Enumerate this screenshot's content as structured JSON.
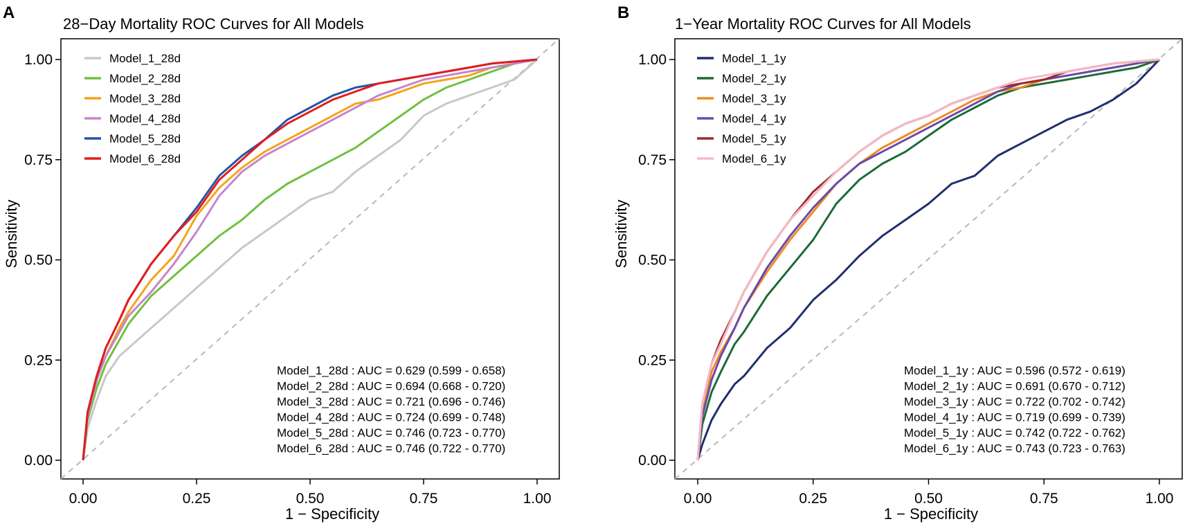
{
  "chart_data": [
    {
      "type": "line",
      "panel": "A",
      "title": "28−Day Mortality ROC Curves for All Models",
      "xlabel": "1 − Specificity",
      "ylabel": "Sensitivity",
      "xlim": [
        0,
        1
      ],
      "ylim": [
        0,
        1
      ],
      "xticks": [
        "0.00",
        "0.25",
        "0.50",
        "0.75",
        "1.00"
      ],
      "yticks": [
        "0.00",
        "0.25",
        "0.50",
        "0.75",
        "1.00"
      ],
      "legend_position": "top-left",
      "auc_labels": [
        "Model_1_28d : AUC = 0.629 (0.599 - 0.658)",
        "Model_2_28d : AUC = 0.694 (0.668 - 0.720)",
        "Model_3_28d : AUC = 0.721 (0.696 - 0.746)",
        "Model_4_28d : AUC = 0.724 (0.699 - 0.748)",
        "Model_5_28d : AUC = 0.746 (0.723 - 0.770)",
        "Model_6_28d : AUC = 0.746 (0.722 - 0.770)"
      ],
      "series": [
        {
          "name": "Model_1_28d",
          "color": "#c8c8c8",
          "x": [
            0,
            0.01,
            0.03,
            0.05,
            0.08,
            0.1,
            0.15,
            0.2,
            0.25,
            0.3,
            0.35,
            0.4,
            0.45,
            0.5,
            0.55,
            0.6,
            0.65,
            0.7,
            0.75,
            0.8,
            0.85,
            0.9,
            0.95,
            1.0
          ],
          "y": [
            0,
            0.08,
            0.15,
            0.21,
            0.26,
            0.28,
            0.33,
            0.38,
            0.43,
            0.48,
            0.53,
            0.57,
            0.61,
            0.65,
            0.67,
            0.72,
            0.76,
            0.8,
            0.86,
            0.89,
            0.91,
            0.93,
            0.95,
            1.0
          ]
        },
        {
          "name": "Model_2_28d",
          "color": "#70c040",
          "x": [
            0,
            0.01,
            0.03,
            0.05,
            0.08,
            0.1,
            0.15,
            0.2,
            0.25,
            0.3,
            0.35,
            0.4,
            0.45,
            0.5,
            0.55,
            0.6,
            0.65,
            0.7,
            0.75,
            0.8,
            0.85,
            0.9,
            0.95,
            1.0
          ],
          "y": [
            0,
            0.1,
            0.18,
            0.24,
            0.3,
            0.34,
            0.41,
            0.46,
            0.51,
            0.56,
            0.6,
            0.65,
            0.69,
            0.72,
            0.75,
            0.78,
            0.82,
            0.86,
            0.9,
            0.93,
            0.95,
            0.97,
            0.99,
            1.0
          ]
        },
        {
          "name": "Model_3_28d",
          "color": "#f4a31c",
          "x": [
            0,
            0.01,
            0.03,
            0.05,
            0.08,
            0.1,
            0.15,
            0.2,
            0.25,
            0.3,
            0.35,
            0.4,
            0.45,
            0.5,
            0.55,
            0.6,
            0.65,
            0.7,
            0.75,
            0.8,
            0.85,
            0.9,
            0.95,
            1.0
          ],
          "y": [
            0,
            0.11,
            0.2,
            0.26,
            0.33,
            0.37,
            0.45,
            0.51,
            0.61,
            0.68,
            0.73,
            0.77,
            0.8,
            0.83,
            0.86,
            0.89,
            0.9,
            0.92,
            0.94,
            0.95,
            0.96,
            0.98,
            0.99,
            1.0
          ]
        },
        {
          "name": "Model_4_28d",
          "color": "#c585c9",
          "x": [
            0,
            0.01,
            0.03,
            0.05,
            0.08,
            0.1,
            0.15,
            0.2,
            0.25,
            0.3,
            0.35,
            0.4,
            0.45,
            0.5,
            0.55,
            0.6,
            0.65,
            0.7,
            0.75,
            0.8,
            0.85,
            0.9,
            0.95,
            1.0
          ],
          "y": [
            0,
            0.11,
            0.2,
            0.26,
            0.32,
            0.36,
            0.42,
            0.49,
            0.57,
            0.66,
            0.72,
            0.76,
            0.79,
            0.82,
            0.85,
            0.88,
            0.91,
            0.93,
            0.95,
            0.96,
            0.97,
            0.98,
            0.99,
            1.0
          ]
        },
        {
          "name": "Model_5_28d",
          "color": "#2653a6",
          "x": [
            0,
            0.01,
            0.03,
            0.05,
            0.08,
            0.1,
            0.15,
            0.2,
            0.25,
            0.3,
            0.35,
            0.4,
            0.45,
            0.5,
            0.55,
            0.6,
            0.65,
            0.7,
            0.75,
            0.8,
            0.85,
            0.9,
            0.95,
            1.0
          ],
          "y": [
            0,
            0.12,
            0.21,
            0.28,
            0.35,
            0.4,
            0.49,
            0.56,
            0.63,
            0.71,
            0.76,
            0.8,
            0.85,
            0.88,
            0.91,
            0.93,
            0.94,
            0.95,
            0.96,
            0.97,
            0.98,
            0.99,
            0.995,
            1.0
          ]
        },
        {
          "name": "Model_6_28d",
          "color": "#e41c1c",
          "x": [
            0,
            0.01,
            0.03,
            0.05,
            0.08,
            0.1,
            0.15,
            0.2,
            0.25,
            0.3,
            0.35,
            0.4,
            0.45,
            0.5,
            0.55,
            0.6,
            0.65,
            0.7,
            0.75,
            0.8,
            0.85,
            0.9,
            0.95,
            1.0
          ],
          "y": [
            0,
            0.12,
            0.21,
            0.28,
            0.35,
            0.4,
            0.49,
            0.56,
            0.62,
            0.7,
            0.75,
            0.8,
            0.84,
            0.87,
            0.9,
            0.92,
            0.94,
            0.95,
            0.96,
            0.97,
            0.98,
            0.99,
            0.995,
            1.0
          ]
        }
      ]
    },
    {
      "type": "line",
      "panel": "B",
      "title": "1−Year Mortality ROC Curves for All Models",
      "xlabel": "1 − Specificity",
      "ylabel": "Sensitivity",
      "xlim": [
        0,
        1
      ],
      "ylim": [
        0,
        1
      ],
      "xticks": [
        "0.00",
        "0.25",
        "0.50",
        "0.75",
        "1.00"
      ],
      "yticks": [
        "0.00",
        "0.25",
        "0.50",
        "0.75",
        "1.00"
      ],
      "legend_position": "top-left",
      "auc_labels": [
        "Model_1_1y : AUC = 0.596 (0.572 - 0.619)",
        "Model_2_1y : AUC = 0.691 (0.670 - 0.712)",
        "Model_3_1y : AUC = 0.722 (0.702 - 0.742)",
        "Model_4_1y : AUC = 0.719 (0.699 - 0.739)",
        "Model_5_1y : AUC = 0.742 (0.722 - 0.762)",
        "Model_6_1y : AUC = 0.743 (0.723 - 0.763)"
      ],
      "series": [
        {
          "name": "Model_1_1y",
          "color": "#1f2f6e",
          "x": [
            0,
            0.01,
            0.03,
            0.05,
            0.08,
            0.1,
            0.15,
            0.2,
            0.25,
            0.3,
            0.35,
            0.4,
            0.45,
            0.5,
            0.55,
            0.6,
            0.65,
            0.7,
            0.75,
            0.8,
            0.85,
            0.9,
            0.95,
            1.0
          ],
          "y": [
            0,
            0.04,
            0.1,
            0.14,
            0.19,
            0.21,
            0.28,
            0.33,
            0.4,
            0.45,
            0.51,
            0.56,
            0.6,
            0.64,
            0.69,
            0.71,
            0.76,
            0.79,
            0.82,
            0.85,
            0.87,
            0.9,
            0.94,
            1.0
          ]
        },
        {
          "name": "Model_2_1y",
          "color": "#1c6b37",
          "x": [
            0,
            0.01,
            0.03,
            0.05,
            0.08,
            0.1,
            0.15,
            0.2,
            0.25,
            0.3,
            0.35,
            0.4,
            0.45,
            0.5,
            0.55,
            0.6,
            0.65,
            0.7,
            0.75,
            0.8,
            0.85,
            0.9,
            0.95,
            1.0
          ],
          "y": [
            0,
            0.09,
            0.17,
            0.22,
            0.29,
            0.32,
            0.41,
            0.48,
            0.55,
            0.64,
            0.7,
            0.74,
            0.77,
            0.81,
            0.85,
            0.88,
            0.91,
            0.93,
            0.94,
            0.95,
            0.96,
            0.97,
            0.98,
            1.0
          ]
        },
        {
          "name": "Model_3_1y",
          "color": "#f08a24",
          "x": [
            0,
            0.01,
            0.03,
            0.05,
            0.08,
            0.1,
            0.15,
            0.2,
            0.25,
            0.3,
            0.35,
            0.4,
            0.45,
            0.5,
            0.55,
            0.6,
            0.65,
            0.7,
            0.75,
            0.8,
            0.85,
            0.9,
            0.95,
            1.0
          ],
          "y": [
            0,
            0.12,
            0.22,
            0.27,
            0.33,
            0.38,
            0.47,
            0.55,
            0.62,
            0.69,
            0.74,
            0.78,
            0.81,
            0.84,
            0.87,
            0.9,
            0.92,
            0.93,
            0.95,
            0.96,
            0.97,
            0.98,
            0.99,
            1.0
          ]
        },
        {
          "name": "Model_4_1y",
          "color": "#6a4aa8",
          "x": [
            0,
            0.01,
            0.03,
            0.05,
            0.08,
            0.1,
            0.15,
            0.2,
            0.25,
            0.3,
            0.35,
            0.4,
            0.45,
            0.5,
            0.55,
            0.6,
            0.65,
            0.7,
            0.75,
            0.8,
            0.85,
            0.9,
            0.95,
            1.0
          ],
          "y": [
            0,
            0.11,
            0.2,
            0.26,
            0.33,
            0.38,
            0.48,
            0.56,
            0.63,
            0.69,
            0.74,
            0.77,
            0.8,
            0.83,
            0.86,
            0.89,
            0.92,
            0.94,
            0.95,
            0.96,
            0.97,
            0.98,
            0.99,
            1.0
          ]
        },
        {
          "name": "Model_5_1y",
          "color": "#9e2a2b",
          "x": [
            0,
            0.01,
            0.03,
            0.05,
            0.08,
            0.1,
            0.15,
            0.2,
            0.25,
            0.3,
            0.35,
            0.4,
            0.45,
            0.5,
            0.55,
            0.6,
            0.65,
            0.7,
            0.75,
            0.8,
            0.85,
            0.9,
            0.95,
            1.0
          ],
          "y": [
            0,
            0.14,
            0.24,
            0.3,
            0.37,
            0.42,
            0.52,
            0.6,
            0.67,
            0.72,
            0.77,
            0.81,
            0.84,
            0.86,
            0.89,
            0.91,
            0.93,
            0.94,
            0.95,
            0.97,
            0.98,
            0.99,
            0.995,
            1.0
          ]
        },
        {
          "name": "Model_6_1y",
          "color": "#f5b8c4",
          "x": [
            0,
            0.01,
            0.03,
            0.05,
            0.08,
            0.1,
            0.15,
            0.2,
            0.25,
            0.3,
            0.35,
            0.4,
            0.45,
            0.5,
            0.55,
            0.6,
            0.65,
            0.7,
            0.75,
            0.8,
            0.85,
            0.9,
            0.95,
            1.0
          ],
          "y": [
            0,
            0.14,
            0.24,
            0.29,
            0.37,
            0.42,
            0.52,
            0.6,
            0.66,
            0.72,
            0.77,
            0.81,
            0.84,
            0.86,
            0.89,
            0.91,
            0.93,
            0.95,
            0.96,
            0.97,
            0.98,
            0.99,
            0.995,
            1.0
          ]
        }
      ]
    }
  ]
}
